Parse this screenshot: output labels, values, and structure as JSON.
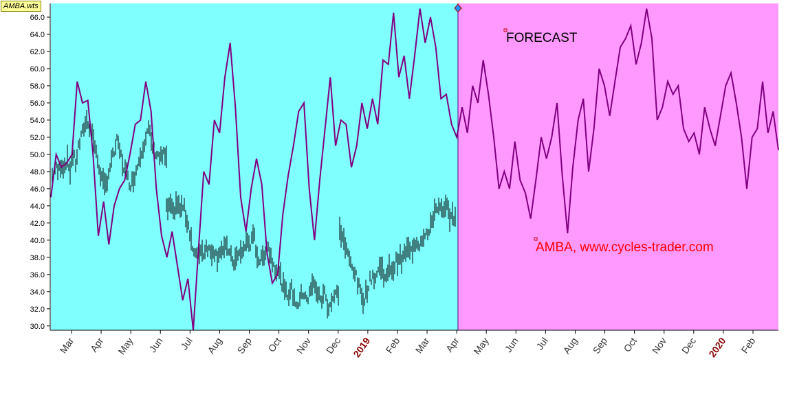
{
  "badge": "AMBA.wts",
  "annotations": {
    "forecast": "FORECAST",
    "source": "AMBA, www.cycles-trader.com"
  },
  "colors": {
    "history_bg": "#80ffff",
    "forecast_bg": "#ff99ff",
    "cycle_line": "#800080",
    "price_bars": "#000000",
    "source_text": "#ff0000",
    "year_text": "#8b0000"
  },
  "chart_data": {
    "type": "line",
    "ylim": [
      29.5,
      67.6
    ],
    "y_ticks": [
      "30.0",
      "32.0",
      "34.0",
      "36.0",
      "38.0",
      "40.0",
      "42.0",
      "44.0",
      "46.0",
      "48.0",
      "50.0",
      "52.0",
      "54.0",
      "56.0",
      "58.0",
      "60.0",
      "62.0",
      "64.0",
      "66.0"
    ],
    "x_labels": [
      {
        "label": "Mar",
        "year": false
      },
      {
        "label": "Apr",
        "year": false
      },
      {
        "label": "May",
        "year": false
      },
      {
        "label": "Jun",
        "year": false
      },
      {
        "label": "Jul",
        "year": false
      },
      {
        "label": "Aug",
        "year": false
      },
      {
        "label": "Sep",
        "year": false
      },
      {
        "label": "Oct",
        "year": false
      },
      {
        "label": "Nov",
        "year": false
      },
      {
        "label": "Dec",
        "year": false
      },
      {
        "label": "2019",
        "year": true
      },
      {
        "label": "Feb",
        "year": false
      },
      {
        "label": "Mar",
        "year": false
      },
      {
        "label": "Apr",
        "year": false
      },
      {
        "label": "May",
        "year": false
      },
      {
        "label": "Jun",
        "year": false
      },
      {
        "label": "Jul",
        "year": false
      },
      {
        "label": "Aug",
        "year": false
      },
      {
        "label": "Sep",
        "year": false
      },
      {
        "label": "Oct",
        "year": false
      },
      {
        "label": "Nov",
        "year": false
      },
      {
        "label": "Dec",
        "year": false
      },
      {
        "label": "2020",
        "year": true
      },
      {
        "label": "Feb",
        "year": false
      }
    ],
    "forecast_start": "Apr",
    "series": [
      {
        "values": [
          45.0,
          50.0,
          48.5,
          49.0,
          50.0,
          58.5,
          56.0,
          56.3,
          50.0,
          40.5,
          44.5,
          39.5,
          44.0,
          46.0,
          47.0,
          50.0,
          53.5,
          54.0,
          58.5,
          55.0,
          46.0,
          40.5,
          38.0,
          41.0,
          37.0,
          33.0,
          35.5,
          29.5,
          39.0,
          48.0,
          46.5,
          54.0,
          52.5,
          59.0,
          63.0,
          55.5,
          45.0,
          41.0,
          46.0,
          49.5,
          46.5,
          38.5,
          35.0,
          36.0,
          43.0,
          47.5,
          51.0,
          55.0,
          56.0,
          46.0,
          40.0,
          47.0,
          53.0,
          59.0,
          51.0,
          54.0,
          53.5,
          48.5,
          51.0,
          56.0,
          53.0,
          56.5,
          53.5,
          61.0,
          60.5,
          66.5,
          59.0,
          61.5,
          56.5,
          61.5,
          67.0,
          63.0,
          66.0,
          62.5,
          56.5,
          57.0,
          53.5,
          52.0,
          55.5,
          52.5,
          58.0,
          56.0,
          61.0,
          57.0,
          52.0,
          46.0,
          48.0,
          46.0,
          51.5,
          47.0,
          45.5,
          42.5,
          47.0,
          52.0,
          49.5,
          52.0,
          56.0,
          47.5,
          40.8,
          48.5,
          54.0,
          56.5,
          48.0,
          53.0,
          60.0,
          58.0,
          54.5,
          58.5,
          62.5,
          63.5,
          65.0,
          60.5,
          63.0,
          67.0,
          63.5,
          54.0,
          55.5,
          58.5,
          57.0,
          58.0,
          53.0,
          51.5,
          52.5,
          50.0,
          55.5,
          53.0,
          51.0,
          54.5,
          58.0,
          59.5,
          56.0,
          52.0,
          46.0,
          52.0,
          53.0,
          58.5,
          52.5,
          55.0,
          50.5
        ]
      }
    ],
    "price_bars": {
      "segments": [
        {
          "vals": [
            47.5,
            48.5,
            48.0,
            49.0,
            48.5,
            49.5,
            48.0,
            50.0,
            49.0,
            51.0,
            52.0,
            53.5,
            54.0,
            53.0,
            52.0,
            50.0,
            48.5,
            47.0,
            46.0,
            47.5,
            49.0,
            50.0,
            51.5,
            50.5,
            49.0,
            48.0,
            47.0,
            46.5,
            47.5,
            48.5,
            50.0,
            51.0,
            52.0,
            53.0,
            51.0,
            50.5,
            50.0,
            49.5,
            50.0,
            49.5
          ]
        },
        {
          "vals": [
            43.5,
            44.0,
            43.0,
            44.5,
            43.5,
            44.0,
            42.5,
            41.0,
            38.5,
            38.0,
            39.0,
            38.5,
            39.5,
            38.5,
            39.0,
            38.0,
            39.0,
            38.5,
            39.5,
            38.0,
            37.5,
            38.0,
            38.5,
            39.0,
            40.0,
            39.5,
            40.5,
            38.0,
            37.5,
            38.5,
            39.5,
            38.0,
            37.0,
            36.5,
            35.5,
            34.0,
            33.5,
            34.5,
            33.0,
            32.5,
            33.5,
            34.0,
            33.0,
            34.5,
            35.0,
            33.5,
            33.0,
            34.0,
            32.0,
            33.0,
            33.5,
            34.0
          ]
        },
        {
          "vals": [
            41.0,
            40.5,
            39.0,
            38.0,
            37.0,
            36.5,
            35.0,
            34.0,
            33.0,
            34.0,
            35.0,
            36.0,
            35.5,
            36.5,
            37.0,
            36.0,
            35.5,
            37.0,
            36.5,
            37.5,
            38.0,
            37.5,
            38.5,
            39.0,
            38.5,
            39.5,
            40.0,
            39.5,
            40.5,
            41.0,
            40.5,
            42.0,
            43.5,
            44.0,
            43.5,
            43.0,
            44.0,
            43.0,
            42.5,
            43.0
          ]
        }
      ]
    }
  }
}
